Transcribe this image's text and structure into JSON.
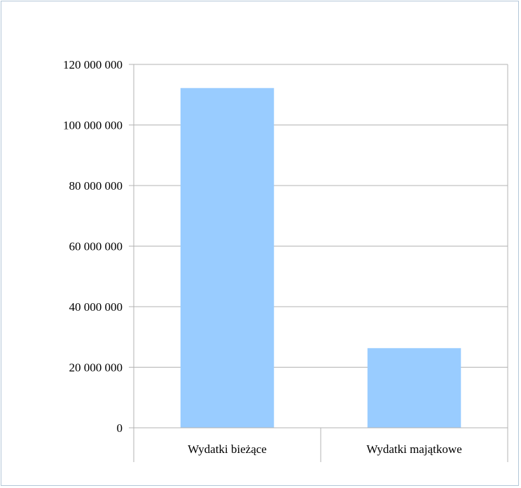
{
  "chart_data": {
    "type": "bar",
    "title": "",
    "xlabel": "",
    "ylabel": "",
    "categories": [
      "Wydatki bieżące",
      "Wydatki majątkowe"
    ],
    "values": [
      112200000,
      26300000
    ],
    "ylim": [
      0,
      120000000
    ],
    "yticks": [
      0,
      20000000,
      40000000,
      60000000,
      80000000,
      100000000,
      120000000
    ],
    "ytick_labels": [
      "0",
      "20 000 000",
      "40 000 000",
      "60 000 000",
      "80 000 000",
      "100 000 000",
      "120 000 000"
    ],
    "grid": true,
    "legend": "none",
    "bar_color": "#99ccff",
    "grid_color": "#b3b3b3"
  }
}
